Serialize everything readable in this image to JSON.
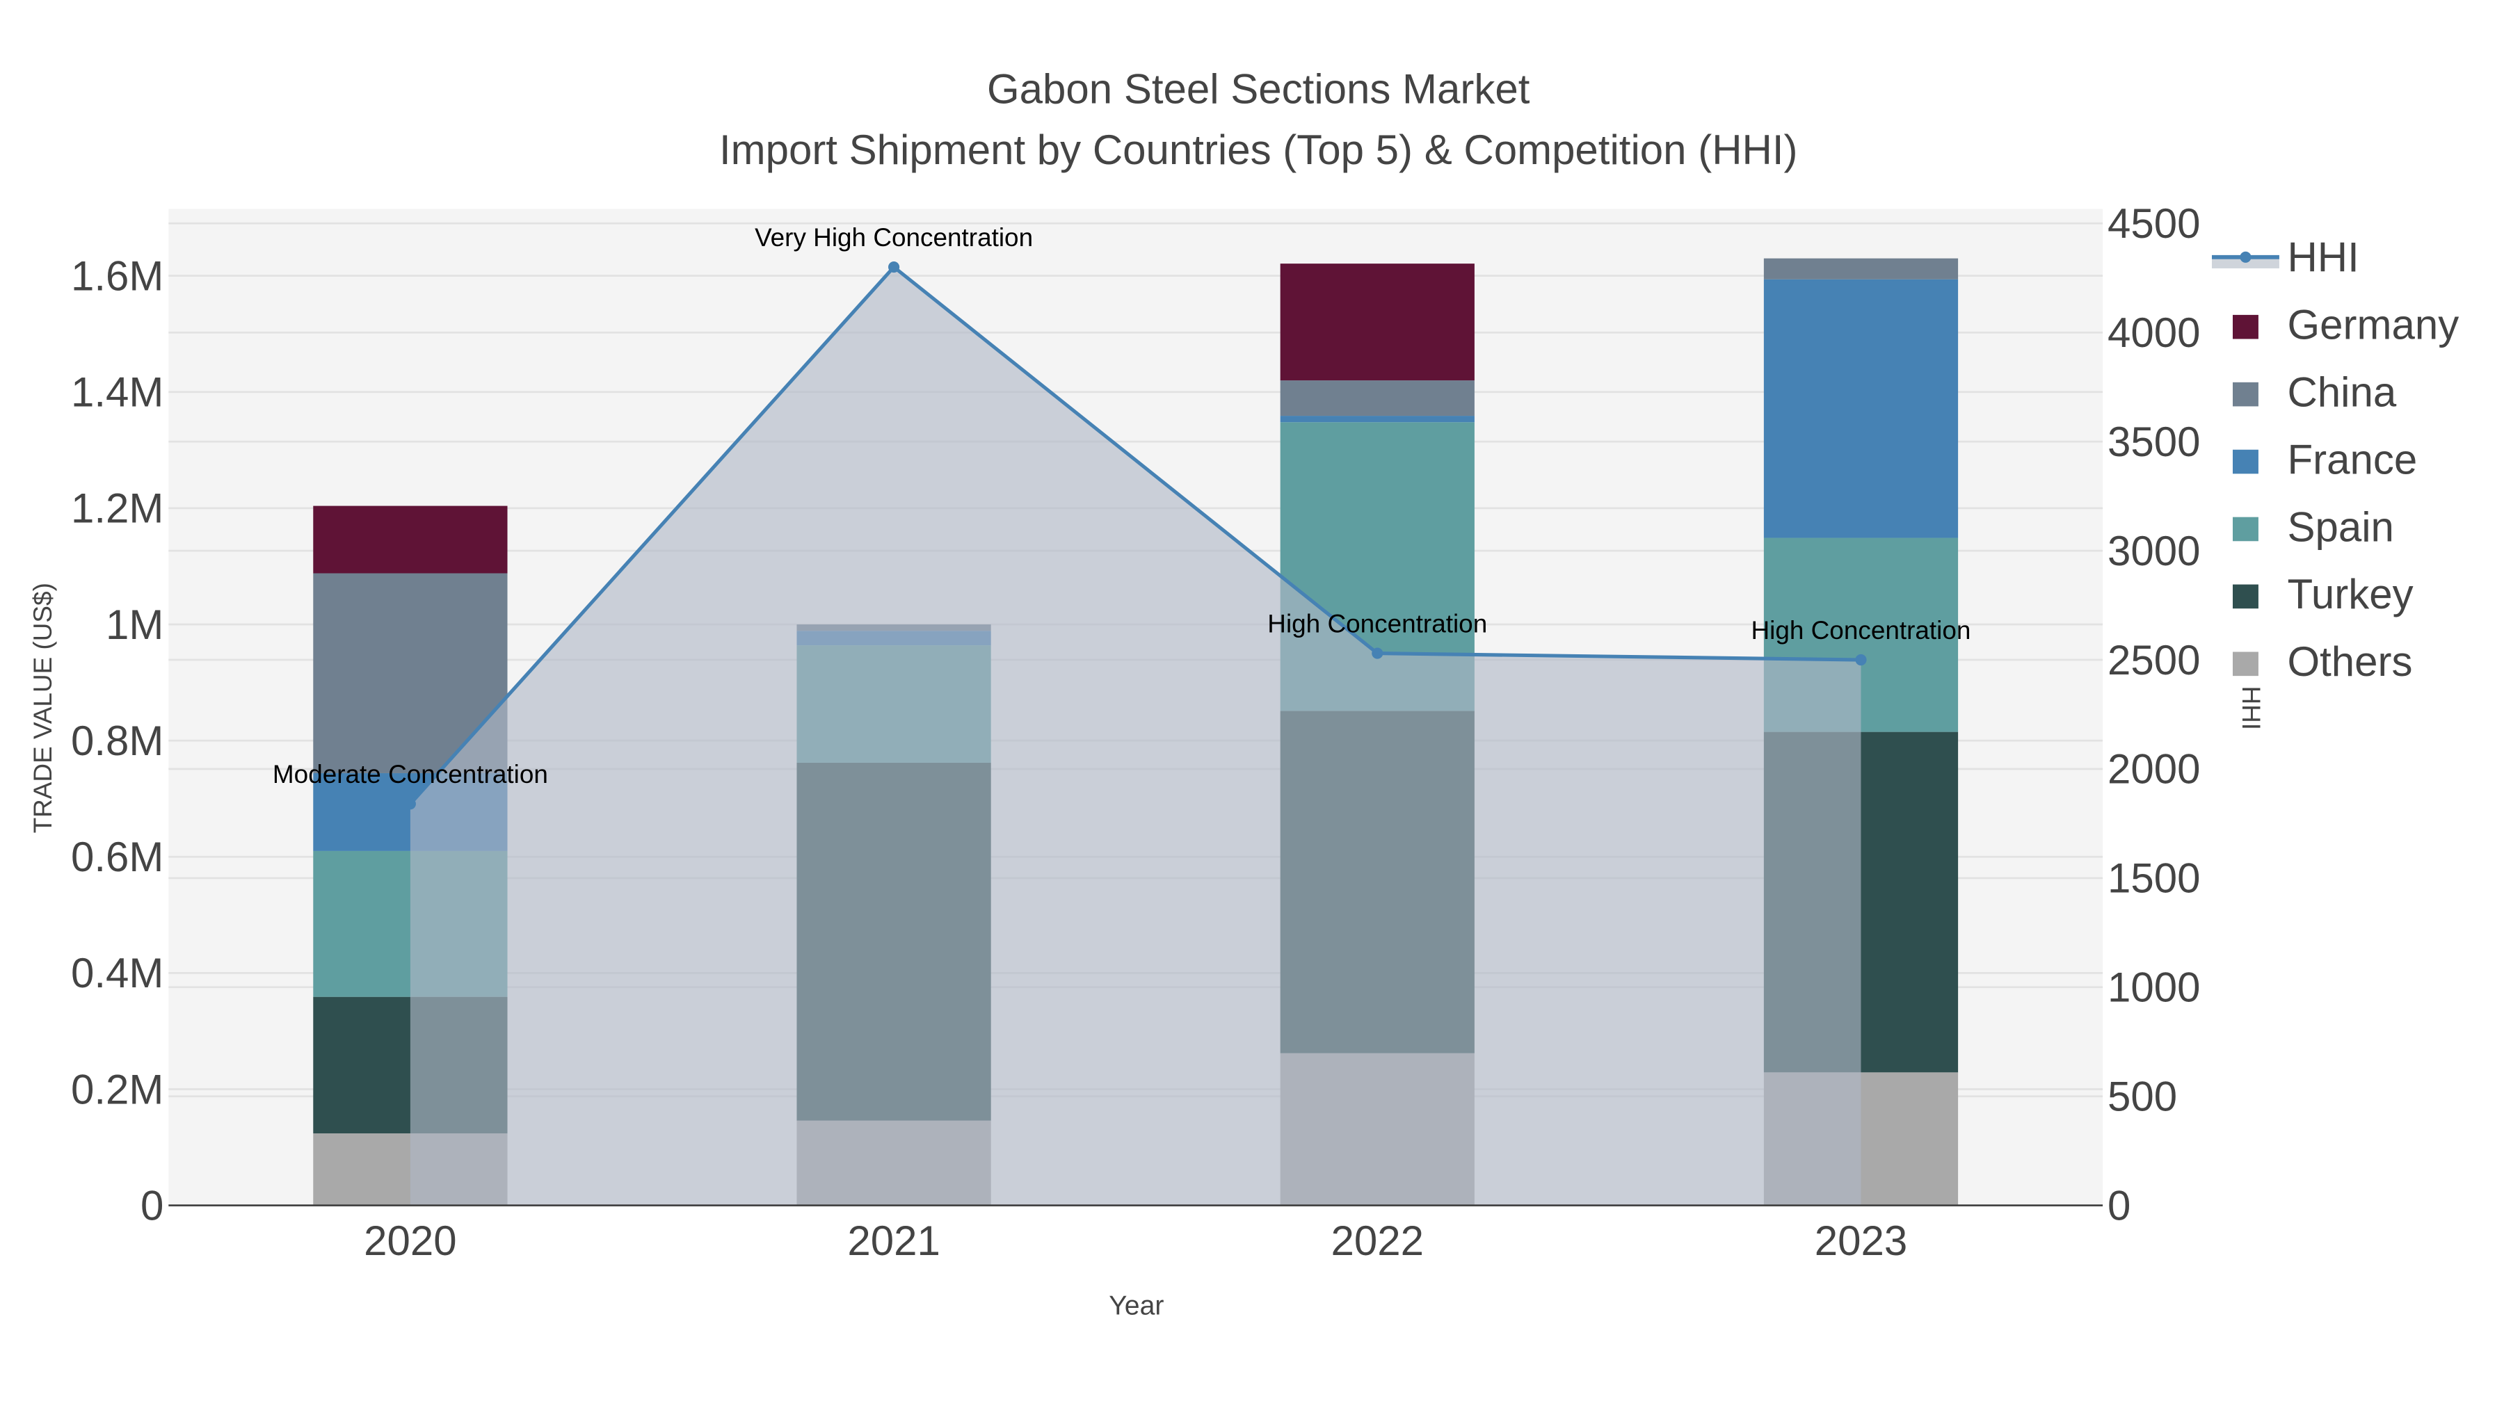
{
  "chart_data": {
    "type": "bar",
    "title": "Gabon Steel Sections Market",
    "subtitle": "Import Shipment by Countries (Top 5) & Competition (HHI)",
    "xlabel": "Year",
    "ylabel": "TRADE VALUE (US$)",
    "y2label": "HHI",
    "categories": [
      "2020",
      "2021",
      "2022",
      "2023"
    ],
    "ylim": [
      0,
      1715000
    ],
    "y2lim": [
      0,
      4566
    ],
    "yticks": [
      0,
      200000,
      400000,
      600000,
      800000,
      1000000,
      1200000,
      1400000,
      1600000
    ],
    "ytick_labels": [
      "0",
      "0.2M",
      "0.4M",
      "0.6M",
      "0.8M",
      "1M",
      "1.2M",
      "1.4M",
      "1.6M"
    ],
    "y2ticks": [
      0,
      500,
      1000,
      1500,
      2000,
      2500,
      3000,
      3500,
      4000,
      4500
    ],
    "y2tick_labels": [
      "0",
      "500",
      "1000",
      "1500",
      "2000",
      "2500",
      "3000",
      "3500",
      "4000",
      "4500"
    ],
    "stacked": true,
    "series": [
      {
        "name": "Others",
        "color": "#a9a9a9",
        "values": [
          124000,
          146000,
          262000,
          229000
        ]
      },
      {
        "name": "Turkey",
        "color": "#2f4f4f",
        "values": [
          235000,
          616000,
          589000,
          586000
        ]
      },
      {
        "name": "Spain",
        "color": "#5f9ea0",
        "values": [
          251000,
          202000,
          497000,
          334000
        ]
      },
      {
        "name": "France",
        "color": "#4682b4",
        "values": [
          134000,
          25000,
          11000,
          445000
        ]
      },
      {
        "name": "China",
        "color": "#708090",
        "values": [
          344000,
          11000,
          61000,
          36000
        ]
      },
      {
        "name": "Germany",
        "color": "#5f1336",
        "values": [
          116000,
          0,
          201000,
          0
        ]
      }
    ],
    "hhi": {
      "name": "HHI",
      "color": "#4682b4",
      "values": [
        1840,
        4300,
        2530,
        2500
      ],
      "annotations": [
        "Moderate Concentration",
        "Very High Concentration",
        "High Concentration",
        "High Concentration"
      ]
    },
    "legend_order": [
      "HHI",
      "Germany",
      "China",
      "France",
      "Spain",
      "Turkey",
      "Others"
    ],
    "legend_position": "right",
    "grid": true
  }
}
